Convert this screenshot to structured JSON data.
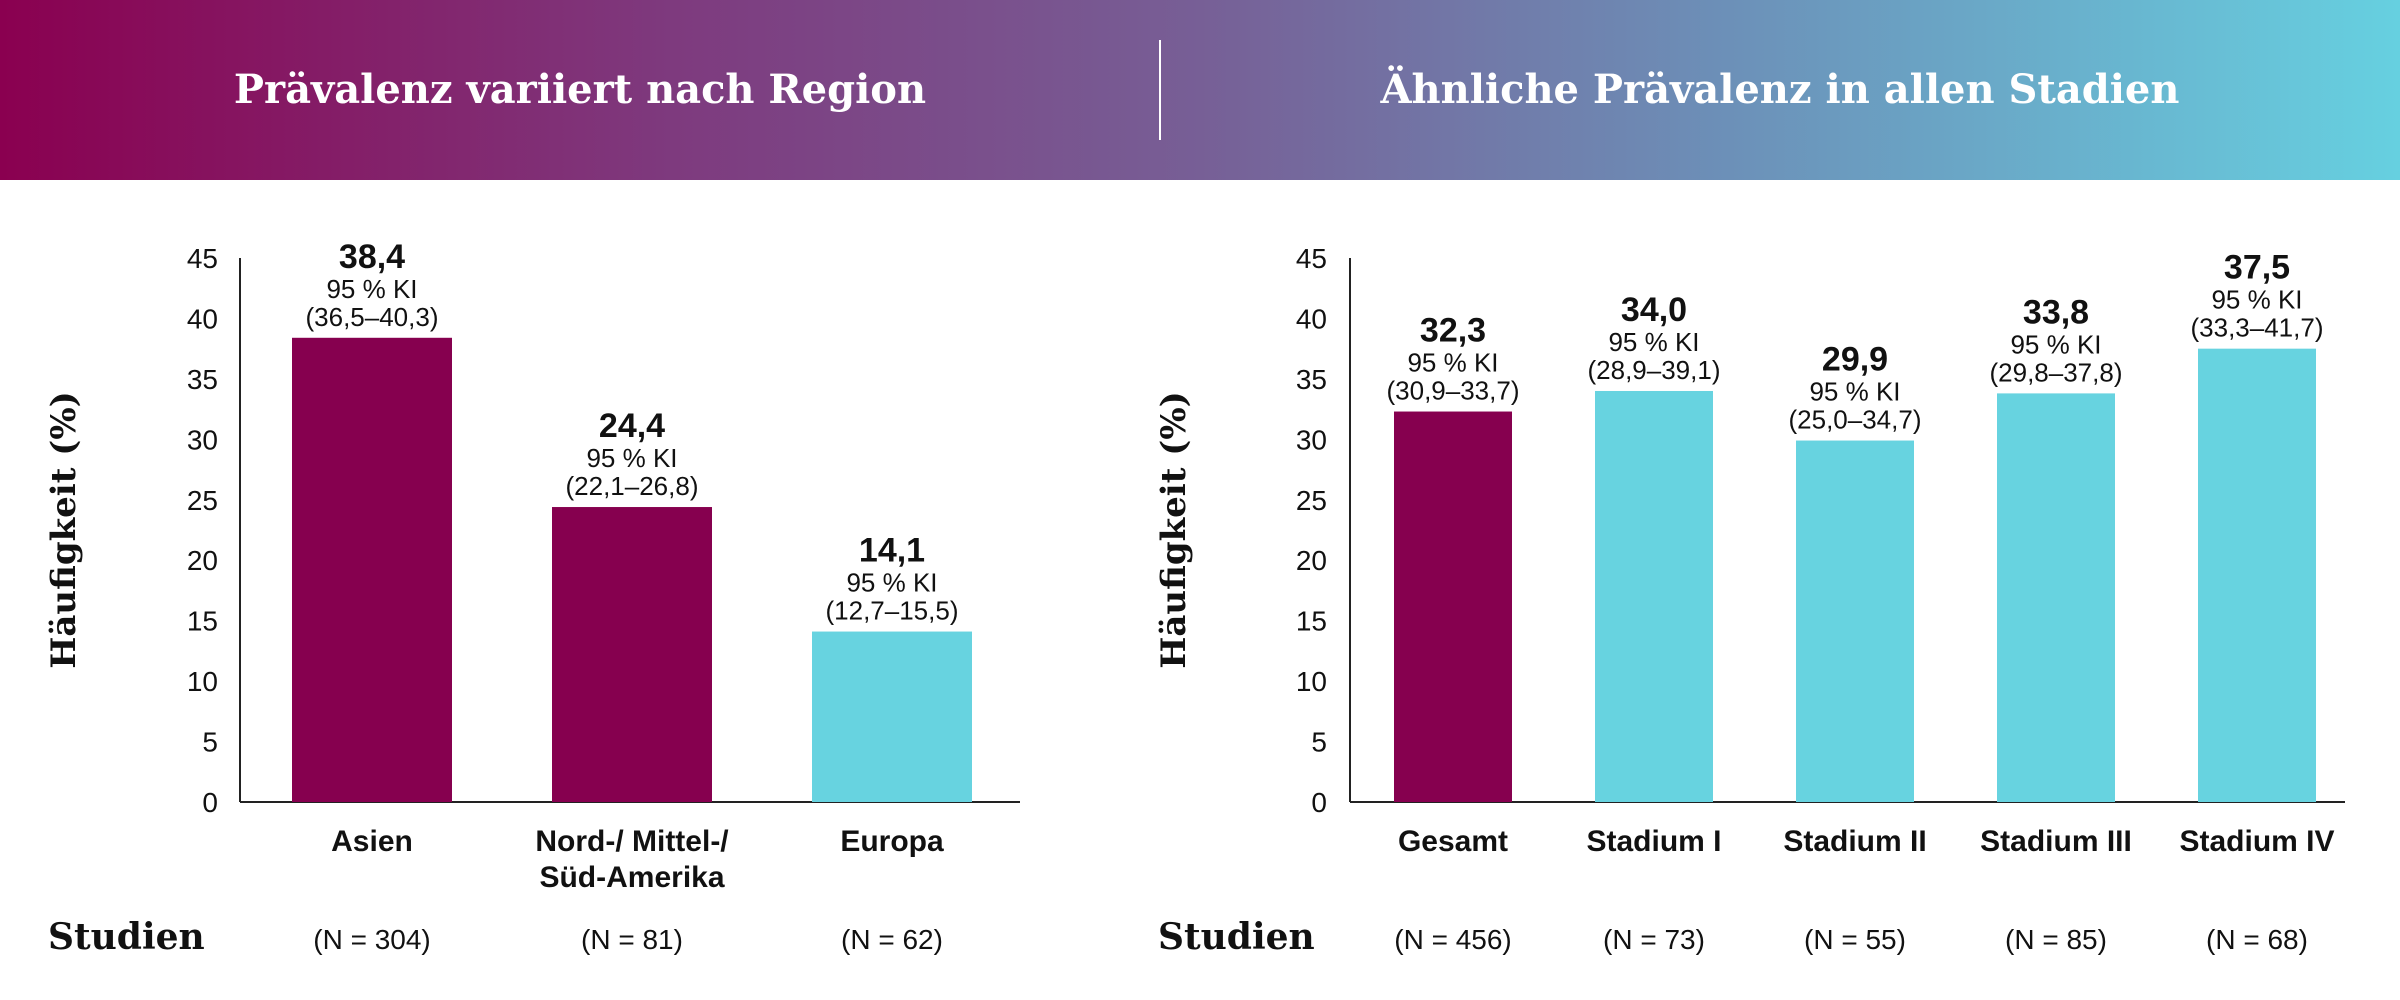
{
  "header": {
    "left_title": "Prävalenz variiert nach Region",
    "right_title": "Ähnliche Prävalenz in allen Stadien"
  },
  "colors": {
    "highlight": "#86004f",
    "secondary": "#67d3e0",
    "banner_start": "#8a0050",
    "banner_end": "#66d0e0"
  },
  "chart_data": [
    {
      "type": "bar",
      "title": "Prävalenz variiert nach Region",
      "ylabel": "Häufigkeit (%)",
      "xlabel": "",
      "ylim": [
        0,
        45
      ],
      "yticks": [
        0,
        5,
        10,
        15,
        20,
        25,
        30,
        35,
        40,
        45
      ],
      "categories": [
        [
          "Asien"
        ],
        [
          "Nord-/ Mittel-/",
          "Süd-Amerika"
        ],
        [
          "Europa"
        ]
      ],
      "values": [
        38.4,
        24.4,
        14.1
      ],
      "value_labels": [
        "38,4",
        "24,4",
        "14,1"
      ],
      "ci_prefix": "95 % KI",
      "ci_labels": [
        "(36,5–40,3)",
        "(22,1–26,8)",
        "(12,7–15,5)"
      ],
      "bar_colors": [
        "#86004f",
        "#86004f",
        "#67d3e0"
      ],
      "studies_label": "Studien",
      "studies": [
        "(N = 304)",
        "(N = 81)",
        "(N = 62)"
      ],
      "grid": false
    },
    {
      "type": "bar",
      "title": "Ähnliche Prävalenz in allen Stadien",
      "ylabel": "Häufigkeit (%)",
      "xlabel": "",
      "ylim": [
        0,
        45
      ],
      "yticks": [
        0,
        5,
        10,
        15,
        20,
        25,
        30,
        35,
        40,
        45
      ],
      "categories": [
        [
          "Gesamt"
        ],
        [
          "Stadium I"
        ],
        [
          "Stadium II"
        ],
        [
          "Stadium III"
        ],
        [
          "Stadium IV"
        ]
      ],
      "values": [
        32.3,
        34.0,
        29.9,
        33.8,
        37.5
      ],
      "value_labels": [
        "32,3",
        "34,0",
        "29,9",
        "33,8",
        "37,5"
      ],
      "ci_prefix": "95 % KI",
      "ci_labels": [
        "(30,9–33,7)",
        "(28,9–39,1)",
        "(25,0–34,7)",
        "(29,8–37,8)",
        "(33,3–41,7)"
      ],
      "bar_colors": [
        "#86004f",
        "#67d3e0",
        "#67d3e0",
        "#67d3e0",
        "#67d3e0"
      ],
      "studies_label": "Studien",
      "studies": [
        "(N = 456)",
        "(N = 73)",
        "(N = 55)",
        "(N = 85)",
        "(N = 68)"
      ],
      "grid": false
    }
  ]
}
